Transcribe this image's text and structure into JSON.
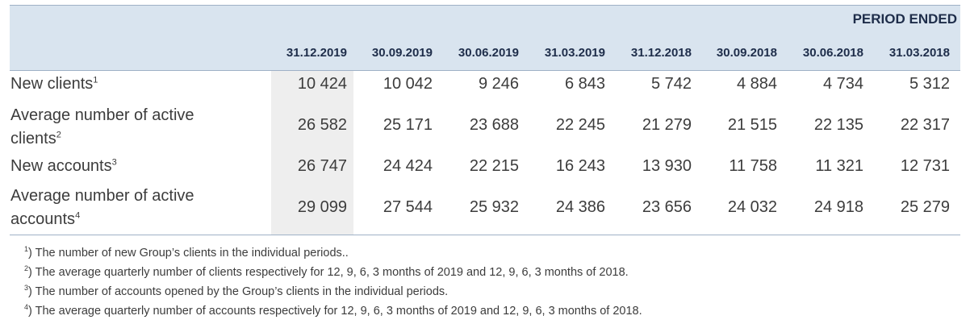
{
  "header": {
    "period_ended": "PERIOD ENDED",
    "columns": [
      "31.12.2019",
      "30.09.2019",
      "30.06.2019",
      "31.03.2019",
      "31.12.2018",
      "30.09.2018",
      "30.06.2018",
      "31.03.2018"
    ]
  },
  "rows": [
    {
      "label": "New clients",
      "note": "1",
      "values": [
        "10 424",
        "10 042",
        "9 246",
        "6 843",
        "5 742",
        "4 884",
        "4 734",
        "5 312"
      ]
    },
    {
      "label_line1": "Average number of active",
      "label_line2": "clients",
      "note": "2",
      "values": [
        "26 582",
        "25 171",
        "23 688",
        "22 245",
        "21 279",
        "21 515",
        "22 135",
        "22 317"
      ]
    },
    {
      "label": "New accounts",
      "note": "3",
      "values": [
        "26 747",
        "24 424",
        "22 215",
        "16 243",
        "13 930",
        "11 758",
        "11 321",
        "12 731"
      ]
    },
    {
      "label_line1": "Average number of active",
      "label_line2": "accounts",
      "note": "4",
      "values": [
        "29 099",
        "27 544",
        "25 932",
        "24 386",
        "23 656",
        "24 032",
        "24 918",
        "25 279"
      ]
    }
  ],
  "footnotes": [
    {
      "mark": "1",
      "text": ") The number of new Group’s clients in the individual periods.."
    },
    {
      "mark": "2",
      "text": ") The average quarterly number of clients respectively for 12, 9, 6, 3 months of 2019 and 12, 9, 6, 3 months of 2018."
    },
    {
      "mark": "3",
      "text": ") The number of accounts opened by the Group’s clients in the individual periods."
    },
    {
      "mark": "4",
      "text": ") The average quarterly number of accounts respectively for 12, 9, 6, 3 months of 2019 and 12, 9, 6, 3 months of 2018."
    }
  ]
}
